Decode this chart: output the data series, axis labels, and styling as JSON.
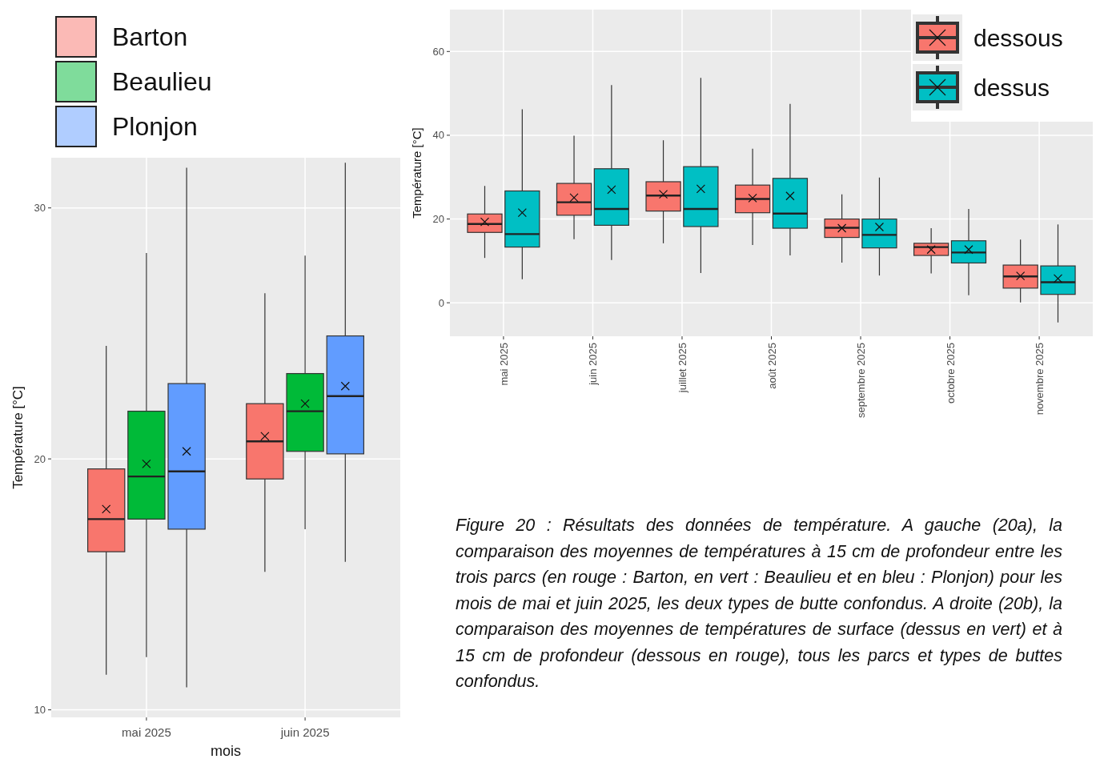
{
  "chart_data": [
    {
      "type": "box",
      "categories": [
        "mai 2025",
        "juin 2025"
      ],
      "xlabel": "mois",
      "ylabel": "Température [°C]",
      "ylim": [
        9.7,
        32.0
      ],
      "yticks": [
        10,
        20,
        30
      ],
      "grid": true,
      "legend": "top left",
      "series": [
        {
          "name": "Barton",
          "color": "#f8766d",
          "boxes": [
            {
              "low": 11.4,
              "q1": 16.3,
              "median": 17.6,
              "q3": 19.6,
              "high": 24.5,
              "mean": 18.0
            },
            {
              "low": 15.5,
              "q1": 19.2,
              "median": 20.7,
              "q3": 22.2,
              "high": 26.6,
              "mean": 20.9
            }
          ]
        },
        {
          "name": "Beaulieu",
          "color": "#00ba38",
          "boxes": [
            {
              "low": 12.1,
              "q1": 17.6,
              "median": 19.3,
              "q3": 21.9,
              "high": 28.2,
              "mean": 19.8
            },
            {
              "low": 17.2,
              "q1": 20.3,
              "median": 21.9,
              "q3": 23.4,
              "high": 28.1,
              "mean": 22.2
            }
          ]
        },
        {
          "name": "Plonjon",
          "color": "#619cff",
          "boxes": [
            {
              "low": 10.9,
              "q1": 17.2,
              "median": 19.5,
              "q3": 23.0,
              "high": 31.6,
              "mean": 20.3
            },
            {
              "low": 15.9,
              "q1": 20.2,
              "median": 22.5,
              "q3": 24.9,
              "high": 31.8,
              "mean": 22.9
            }
          ]
        }
      ]
    },
    {
      "type": "box",
      "categories": [
        "mai 2025",
        "juin 2025",
        "juillet 2025",
        "août 2025",
        "septembre 2025",
        "octobre 2025",
        "novembre 2025"
      ],
      "ylabel": "Température [°C]",
      "ylim": [
        -8,
        70
      ],
      "yticks": [
        0,
        20,
        40,
        60
      ],
      "grid": true,
      "legend": "top right",
      "annotations": [
        "Figure 20 : Résultats des données de température.  A gauche (20a), la comparaison des moyennes de températures  à 15 cm de profondeur entre les trois parcs (en rouge : Barton, en vert : Beaulieu et en bleu : Plonjon) pour les mois de mai et juin 2025, les deux types de butte confondus. A droite (20b), la comparaison des moyennes de températures de surface (dessus en vert) et à 15 cm de profondeur (dessous en rouge), tous les parcs et types de buttes confondus."
      ],
      "series": [
        {
          "name": "dessous",
          "color": "#f8766d",
          "boxes": [
            {
              "low": 10.7,
              "q1": 16.8,
              "median": 18.8,
              "q3": 21.2,
              "high": 27.9,
              "mean": 19.3
            },
            {
              "low": 15.2,
              "q1": 20.9,
              "median": 24.0,
              "q3": 28.5,
              "high": 39.9,
              "mean": 25.1
            },
            {
              "low": 14.2,
              "q1": 21.9,
              "median": 25.6,
              "q3": 28.9,
              "high": 38.8,
              "mean": 25.9
            },
            {
              "low": 13.8,
              "q1": 21.5,
              "median": 24.8,
              "q3": 28.1,
              "high": 36.8,
              "mean": 25.0
            },
            {
              "low": 9.6,
              "q1": 15.6,
              "median": 17.9,
              "q3": 20.0,
              "high": 25.9,
              "mean": 17.8
            },
            {
              "low": 7.0,
              "q1": 11.3,
              "median": 13.3,
              "q3": 14.2,
              "high": 17.8,
              "mean": 12.7
            },
            {
              "low": 0.1,
              "q1": 3.5,
              "median": 6.3,
              "q3": 9.0,
              "high": 15.1,
              "mean": 6.4
            }
          ]
        },
        {
          "name": "dessus",
          "color": "#00bfc4",
          "boxes": [
            {
              "low": 5.6,
              "q1": 13.3,
              "median": 16.4,
              "q3": 26.7,
              "high": 46.2,
              "mean": 21.5
            },
            {
              "low": 10.2,
              "q1": 18.5,
              "median": 22.4,
              "q3": 32.0,
              "high": 52.0,
              "mean": 27.0
            },
            {
              "low": 7.1,
              "q1": 18.2,
              "median": 22.4,
              "q3": 32.5,
              "high": 53.7,
              "mean": 27.2
            },
            {
              "low": 11.3,
              "q1": 17.8,
              "median": 21.3,
              "q3": 29.7,
              "high": 47.5,
              "mean": 25.5
            },
            {
              "low": 6.5,
              "q1": 13.1,
              "median": 16.2,
              "q3": 20.0,
              "high": 29.9,
              "mean": 18.1
            },
            {
              "low": 1.8,
              "q1": 9.5,
              "median": 12.0,
              "q3": 14.8,
              "high": 22.4,
              "mean": 12.7
            },
            {
              "low": -4.7,
              "q1": 2.0,
              "median": 4.9,
              "q3": 8.8,
              "high": 18.7,
              "mean": 5.8
            }
          ]
        }
      ]
    }
  ]
}
